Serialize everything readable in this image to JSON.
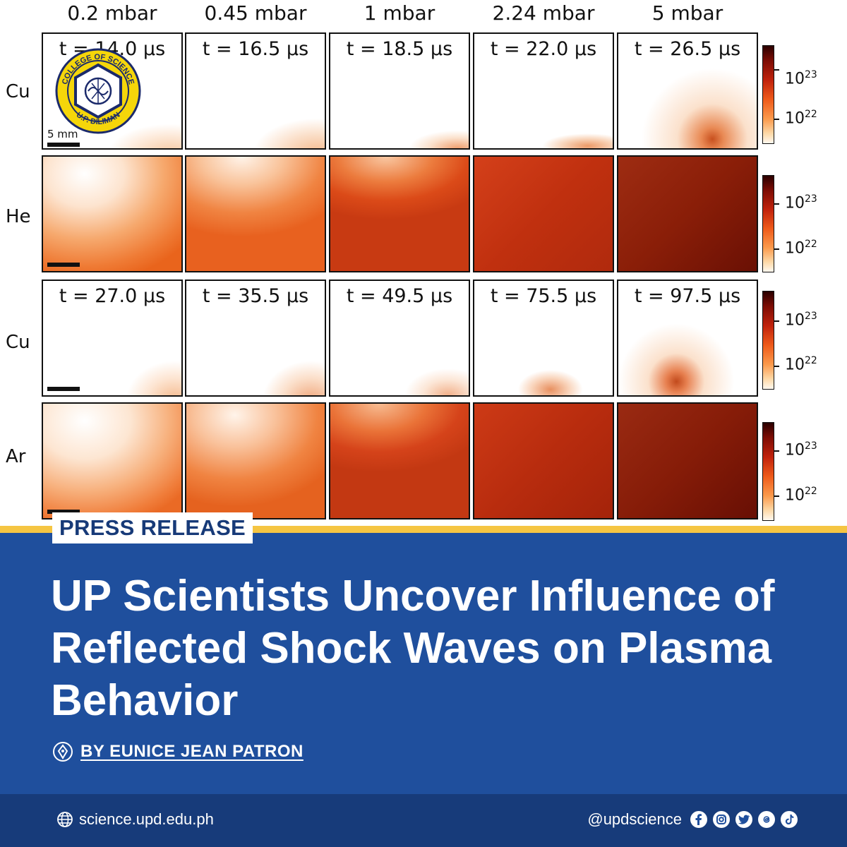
{
  "figure": {
    "pressures": [
      "0.2 mbar",
      "0.45 mbar",
      "1 mbar",
      "2.24 mbar",
      "5 mbar"
    ],
    "rows": [
      {
        "label": "Cu",
        "times": [
          "t = 14.0 μs",
          "t = 16.5 μs",
          "t = 18.5 μs",
          "t = 22.0 μs",
          "t = 26.5 μs"
        ]
      },
      {
        "label": "He",
        "times": []
      },
      {
        "label": "Cu",
        "times": [
          "t = 27.0 μs",
          "t = 35.5 μs",
          "t = 49.5 μs",
          "t = 75.5 μs",
          "t = 97.5 μs"
        ]
      },
      {
        "label": "Ar",
        "times": []
      }
    ],
    "scale_bar": "5 mm",
    "colorbar_ticks": [
      {
        "base": "10",
        "exp": "23"
      },
      {
        "base": "10",
        "exp": "22"
      }
    ],
    "logo_text": {
      "top": "COLLEGE OF SCIENCE",
      "bottom": "U.P. DILIMAN"
    }
  },
  "tag": "PRESS RELEASE",
  "headline": "UP Scientists Uncover Influence of Reflected Shock Waves on Plasma Behavior",
  "byline": "BY EUNICE JEAN PATRON",
  "footer": {
    "website": "science.upd.edu.ph",
    "handle": "@updscience",
    "socials": [
      "facebook-icon",
      "instagram-icon",
      "twitter-icon",
      "threads-icon",
      "tiktok-icon"
    ]
  },
  "colors": {
    "blue": "#1f4f9d",
    "dark_blue": "#173b7a",
    "gold": "#f5c542"
  }
}
